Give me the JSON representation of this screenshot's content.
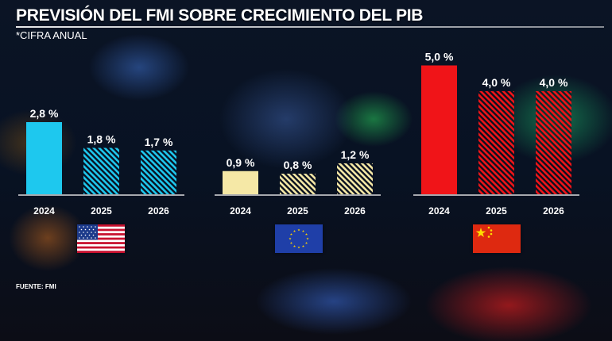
{
  "title": "PREVISIÓN DEL FMI SOBRE CRECIMIENTO DEL PIB",
  "subtitle": "*CIFRA ANUAL",
  "source": "FUENTE: FMI",
  "flags": [
    "us-flag-icon",
    "eu-flag-icon",
    "china-flag-icon"
  ],
  "chart_data": {
    "type": "bar",
    "groups": [
      {
        "name": "us-flag-icon",
        "color": "#1ec8ee",
        "bars": [
          {
            "x": "2024",
            "value": 2.8,
            "label": "2,8 %",
            "hatched": false
          },
          {
            "x": "2025",
            "value": 1.8,
            "label": "1,8 %",
            "hatched": true
          },
          {
            "x": "2026",
            "value": 1.7,
            "label": "1,7 %",
            "hatched": true
          }
        ]
      },
      {
        "name": "eu-flag-icon",
        "color": "#f5e8a6",
        "bars": [
          {
            "x": "2024",
            "value": 0.9,
            "label": "0,9 %",
            "hatched": false
          },
          {
            "x": "2025",
            "value": 0.8,
            "label": "0,8 %",
            "hatched": true
          },
          {
            "x": "2026",
            "value": 1.2,
            "label": "1,2 %",
            "hatched": true
          }
        ]
      },
      {
        "name": "china-flag-icon",
        "color": "#f01418",
        "bars": [
          {
            "x": "2024",
            "value": 5.0,
            "label": "5,0 %",
            "hatched": false
          },
          {
            "x": "2025",
            "value": 4.0,
            "label": "4,0 %",
            "hatched": true
          },
          {
            "x": "2026",
            "value": 4.0,
            "label": "4,0 %",
            "hatched": true
          }
        ]
      }
    ]
  }
}
